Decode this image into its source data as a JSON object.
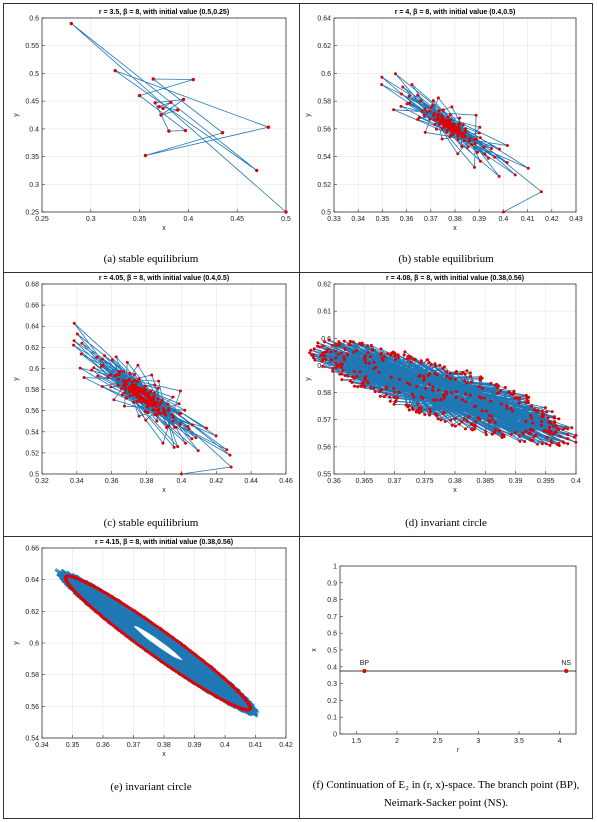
{
  "chart_data": [
    {
      "type": "line",
      "panel": "a",
      "title": "r = 3.5,  β = 8, with initial value (0.5,0.25)",
      "xlabel": "x",
      "ylabel": "y",
      "xlim": [
        0.25,
        0.5
      ],
      "ylim": [
        0.25,
        0.6
      ],
      "xticks": [
        "0.25",
        "0.3",
        "0.35",
        "0.4",
        "0.45",
        "0.5"
      ],
      "yticks": [
        "0.25",
        "0.3",
        "0.35",
        "0.4",
        "0.45",
        "0.5",
        "0.55",
        "0.6"
      ],
      "grid": true,
      "behavior": "spiral-in",
      "fixed_point": [
        0.378,
        0.443
      ],
      "trajectory": [
        [
          0.5,
          0.25
        ],
        [
          0.28,
          0.59
        ],
        [
          0.47,
          0.325
        ],
        [
          0.325,
          0.505
        ],
        [
          0.482,
          0.403
        ],
        [
          0.356,
          0.352
        ],
        [
          0.435,
          0.393
        ],
        [
          0.364,
          0.49
        ],
        [
          0.405,
          0.489
        ],
        [
          0.35,
          0.46
        ],
        [
          0.397,
          0.397
        ],
        [
          0.38,
          0.396
        ],
        [
          0.366,
          0.447
        ],
        [
          0.395,
          0.453
        ],
        [
          0.372,
          0.425
        ],
        [
          0.389,
          0.434
        ],
        [
          0.37,
          0.44
        ],
        [
          0.382,
          0.448
        ],
        [
          0.374,
          0.437
        ]
      ],
      "caption": "(a) stable equilibrium"
    },
    {
      "type": "line",
      "panel": "b",
      "title": "r = 4,  β = 8, with initial value (0.4,0.5)",
      "xlabel": "x",
      "ylabel": "y",
      "xlim": [
        0.33,
        0.43
      ],
      "ylim": [
        0.5,
        0.64
      ],
      "xticks": [
        "0.33",
        "0.34",
        "0.35",
        "0.36",
        "0.37",
        "0.38",
        "0.39",
        "0.4",
        "0.41",
        "0.42",
        "0.43"
      ],
      "yticks": [
        "0.5",
        "0.52",
        "0.54",
        "0.56",
        "0.58",
        "0.6",
        "0.62",
        "0.64"
      ],
      "grid": true,
      "behavior": "slow-spiral-in",
      "fixed_point": [
        0.378,
        0.562
      ],
      "caption": "(b) stable equilibrium"
    },
    {
      "type": "line",
      "panel": "c",
      "title": "r = 4.05,  β = 8, with initial value (0.4,0.5)",
      "xlabel": "x",
      "ylabel": "y",
      "xlim": [
        0.32,
        0.46
      ],
      "ylim": [
        0.5,
        0.68
      ],
      "xticks": [
        "0.32",
        "0.34",
        "0.36",
        "0.38",
        "0.4",
        "0.42",
        "0.44",
        "0.46"
      ],
      "yticks": [
        "0.5",
        "0.52",
        "0.54",
        "0.56",
        "0.58",
        "0.6",
        "0.62",
        "0.64",
        "0.66",
        "0.68"
      ],
      "grid": true,
      "behavior": "very-slow-spiral-in",
      "fixed_point": [
        0.378,
        0.574
      ],
      "caption": "(c) stable equilibrium"
    },
    {
      "type": "line",
      "panel": "d",
      "title": "r = 4.08,  β = 8, with initial value (0.38,0.56)",
      "xlabel": "x",
      "ylabel": "y",
      "xlim": [
        0.36,
        0.4
      ],
      "ylim": [
        0.55,
        0.62
      ],
      "xticks": [
        "0.36",
        "0.365",
        "0.37",
        "0.375",
        "0.38",
        "0.385",
        "0.39",
        "0.395",
        "0.4"
      ],
      "yticks": [
        "0.55",
        "0.56",
        "0.57",
        "0.58",
        "0.59",
        "0.6",
        "0.61",
        "0.62"
      ],
      "grid": true,
      "behavior": "spiral-out-to-invariant-circle",
      "fixed_point": [
        0.378,
        0.58
      ],
      "caption": "(d) invariant circle"
    },
    {
      "type": "line",
      "panel": "e",
      "title": "r = 4.15,  β = 8, with initial value (0.38,0.56)",
      "xlabel": "x",
      "ylabel": "y",
      "xlim": [
        0.34,
        0.42
      ],
      "ylim": [
        0.54,
        0.66
      ],
      "xticks": [
        "0.34",
        "0.35",
        "0.36",
        "0.37",
        "0.38",
        "0.39",
        "0.4",
        "0.41",
        "0.42"
      ],
      "yticks": [
        "0.54",
        "0.56",
        "0.58",
        "0.6",
        "0.62",
        "0.64",
        "0.66"
      ],
      "grid": true,
      "behavior": "invariant-circle",
      "fixed_point": [
        0.378,
        0.6
      ],
      "caption": "(e) invariant circle"
    },
    {
      "type": "line",
      "panel": "f",
      "title": "",
      "xlabel": "r",
      "ylabel": "x",
      "xlim": [
        1.3,
        4.2
      ],
      "ylim": [
        0,
        1
      ],
      "xticks": [
        "1.5",
        "2",
        "2.5",
        "3",
        "3.5",
        "4"
      ],
      "yticks": [
        "0",
        "0.1",
        "0.2",
        "0.3",
        "0.4",
        "0.5",
        "0.6",
        "0.7",
        "0.8",
        "0.9",
        "1"
      ],
      "grid": false,
      "series": [
        {
          "x": [
            1.3,
            4.2
          ],
          "values": [
            0.375,
            0.375
          ]
        }
      ],
      "points": [
        {
          "label": "BP",
          "x": 1.6,
          "y": 0.375
        },
        {
          "label": "NS",
          "x": 4.08,
          "y": 0.375
        }
      ],
      "caption": "(f) Continuation of E₂ in (r, x)-space. The branch point (BP), Neimark-Sacker point (NS)."
    }
  ],
  "colors": {
    "line": "#1f77b4",
    "point": "#e00000",
    "frame": "#333333"
  }
}
